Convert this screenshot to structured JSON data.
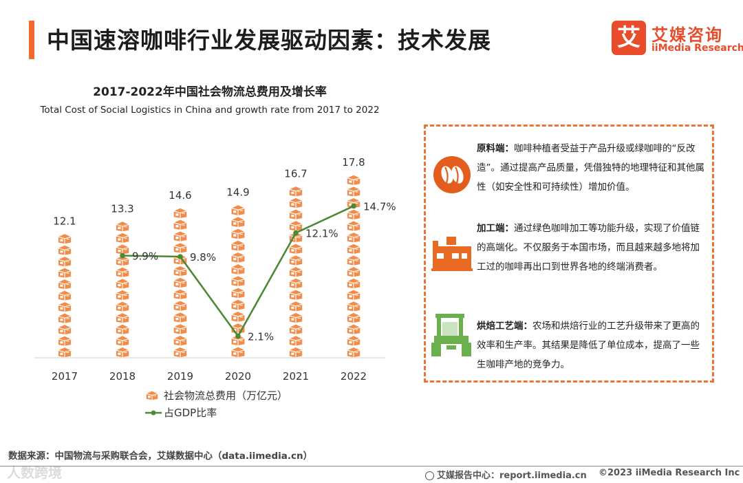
{
  "header": {
    "title": "中国速溶咖啡行业发展驱动因素：技术发展",
    "logo_mark": "艾",
    "logo_cn": "艾媒咨询",
    "logo_en": "iiMedia Research"
  },
  "colors": {
    "accent": "#ef6a2c",
    "bar": "#f28c4a",
    "line": "#4a8a35",
    "brown": "#c8551e",
    "green_icon": "#6ab04c"
  },
  "chart_data": {
    "type": "bar+line",
    "title": "2017-2022年中国社会物流总费用及增长率",
    "subtitle": "Total Cost of Social Logistics in China and growth rate from 2017 to  2022",
    "categories": [
      "2017",
      "2018",
      "2019",
      "2020",
      "2021",
      "2022"
    ],
    "series": [
      {
        "name": "社会物流总费用（万亿元）",
        "type": "bar",
        "values": [
          12.1,
          13.3,
          14.6,
          14.9,
          16.7,
          17.8
        ],
        "labels": [
          "12.1",
          "13.3",
          "14.6",
          "14.9",
          "16.7",
          "17.8"
        ]
      },
      {
        "name": "占GDP比率",
        "type": "line",
        "values": [
          null,
          9.9,
          9.8,
          2.1,
          12.1,
          14.7
        ],
        "labels": [
          "",
          "9.9%",
          "9.8%",
          "2.1%",
          "12.1%",
          "14.7%"
        ]
      }
    ],
    "bar_axis_range": [
      0,
      20
    ],
    "line_axis_range": [
      0,
      20
    ],
    "legend": [
      "社会物流总费用（万亿元）",
      "占GDP比率"
    ],
    "legend_position": "bottom"
  },
  "drivers": [
    {
      "icon": "coffee-bean-icon",
      "title": "原料端：",
      "text": "咖啡种植者受益于产品升级或绿咖啡的“反改造”。通过提高产品质量，凭借独特的地理特征和其他属性（如安全性和可持续性）增加价值。"
    },
    {
      "icon": "factory-icon",
      "title": "加工端：",
      "text": "通过绿色咖啡加工等功能升级，实现了价值链的高端化。不仅服务于本国市场，而且越来越多地将加工过的咖啡再出口到世界各地的终端消费者。"
    },
    {
      "icon": "tractor-icon",
      "title": "烘焙工艺端：",
      "text": "农场和烘焙行业的工艺升级带来了更高的效率和生产率。其结果是降低了单位成本，提高了一些生咖啡产地的竞争力。"
    }
  ],
  "footer": {
    "source": "数据来源：中国物流与采购联合会，艾媒数据中心（data.iimedia.cn）",
    "watermark": "人数跨境",
    "center": "艾媒报告中心：report.iimedia.cn",
    "copyright": "©2023  iiMedia Research  Inc"
  }
}
